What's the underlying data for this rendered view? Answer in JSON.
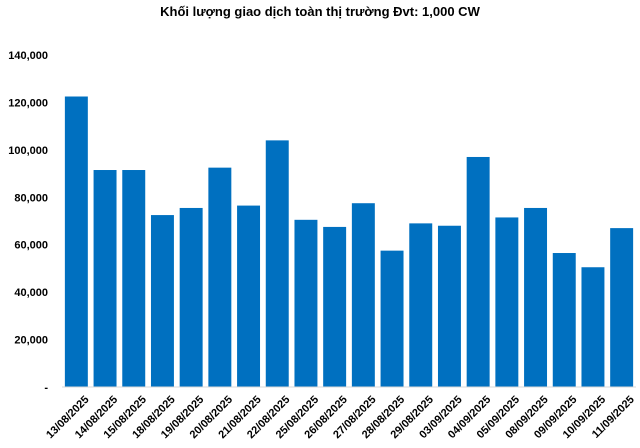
{
  "chart_data": {
    "type": "bar",
    "title": "Khối lượng giao dịch toàn thị trường Đvt: 1,000 CW",
    "xlabel": "",
    "ylabel": "",
    "ylim": [
      0,
      140000
    ],
    "y_ticks": [
      0,
      20000,
      40000,
      60000,
      80000,
      100000,
      120000,
      140000
    ],
    "y_tick_labels": [
      "-",
      "20,000",
      "40,000",
      "60,000",
      "80,000",
      "100,000",
      "120,000",
      "140,000"
    ],
    "grid": false,
    "bar_color": "#0070C0",
    "categories": [
      "13/08/2025",
      "14/08/2025",
      "15/08/2025",
      "18/08/2025",
      "19/08/2025",
      "20/08/2025",
      "21/08/2025",
      "22/08/2025",
      "25/08/2025",
      "26/08/2025",
      "27/08/2025",
      "28/08/2025",
      "29/08/2025",
      "03/09/2025",
      "04/09/2025",
      "05/09/2025",
      "08/09/2025",
      "09/09/2025",
      "10/09/2025",
      "11/09/2025"
    ],
    "values": [
      122500,
      91500,
      91500,
      72500,
      75500,
      92500,
      76500,
      104000,
      70500,
      67500,
      77500,
      57500,
      69000,
      68000,
      97000,
      71500,
      75500,
      56500,
      50500,
      67000
    ]
  }
}
